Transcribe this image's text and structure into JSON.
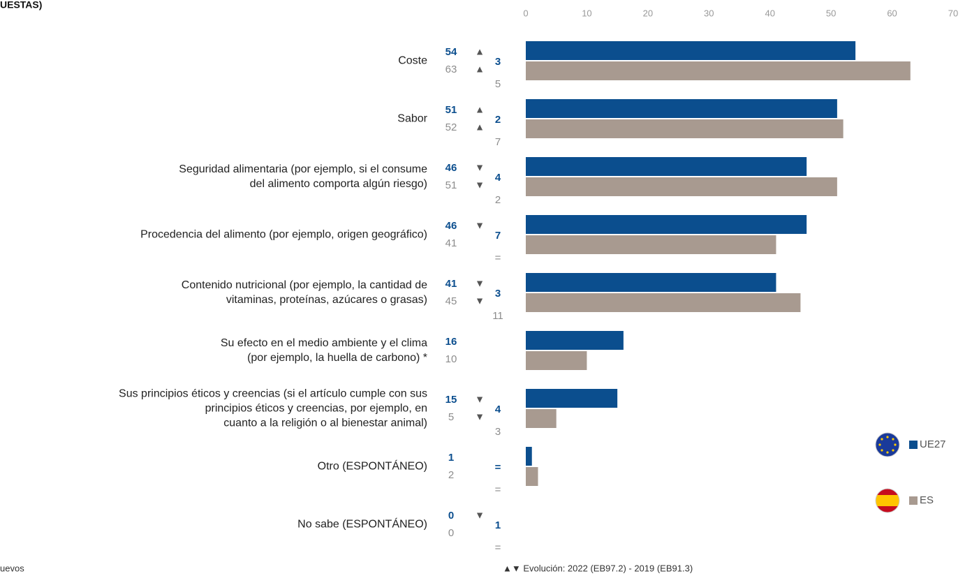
{
  "chart_data": {
    "type": "bar",
    "orientation": "horizontal",
    "title": "UESTAS)",
    "source": "uevos",
    "footnote": "▲▼ Evolución:  2022 (EB97.2) - 2019 (EB91.3)",
    "categories": [
      "Coste",
      "Sabor",
      "Seguridad alimentaria (por ejemplo, si el consume\ndel alimento comporta algún riesgo)",
      "Procedencia del alimento (por ejemplo, origen geográfico)",
      "Contenido nutricional (por ejemplo, la cantidad de\nvitaminas, proteínas, azúcares o grasas)",
      "Su efecto en el medio ambiente y el clima\n(por ejemplo, la huella de carbono) *",
      "Sus principios éticos y creencias (si el artículo cumple con sus\nprincipios éticos y creencias, por ejemplo, en\ncuanto a la religión o al bienestar animal)",
      "Otro (ESPONTÁNEO)",
      "No sabe (ESPONTÁNEO)"
    ],
    "series": [
      {
        "name": "UE27",
        "color": "#0b4e8e",
        "values": [
          54,
          51,
          46,
          46,
          41,
          16,
          15,
          1,
          0
        ],
        "arrows": [
          "▲",
          "▲",
          "▼",
          "▼",
          "▼",
          null,
          "▼",
          null,
          "▼"
        ],
        "changes": [
          3,
          2,
          4,
          7,
          3,
          null,
          4,
          "=",
          1
        ]
      },
      {
        "name": "ES",
        "color": "#a89a90",
        "values": [
          63,
          52,
          51,
          41,
          45,
          10,
          5,
          2,
          0
        ],
        "arrows": [
          "▲",
          "▲",
          "▼",
          null,
          "▼",
          null,
          "▼",
          null,
          null
        ],
        "changes": [
          5,
          7,
          2,
          "=",
          11,
          null,
          3,
          "=",
          "="
        ]
      }
    ],
    "xlim": [
      0,
      70
    ],
    "xticks": [
      0,
      10,
      20,
      30,
      40,
      50,
      60,
      70
    ]
  }
}
